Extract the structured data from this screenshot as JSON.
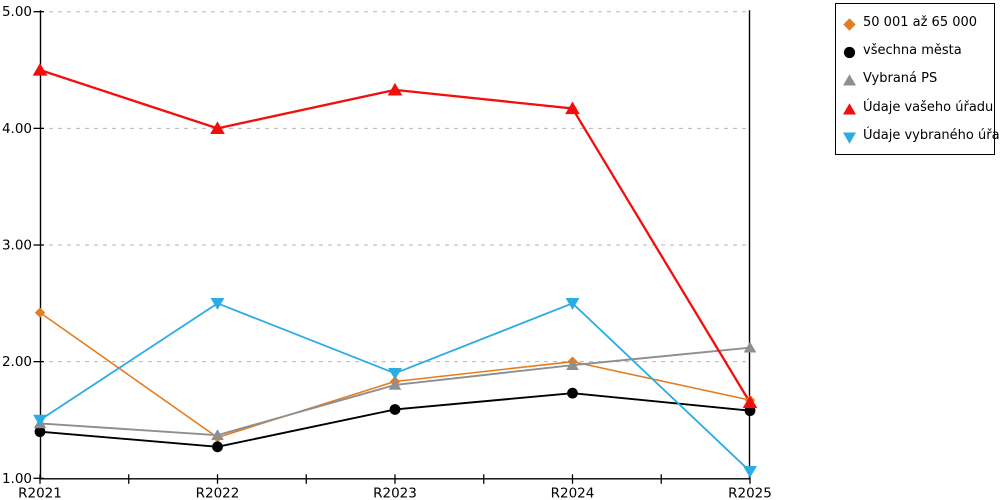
{
  "chart_data": {
    "type": "line",
    "categories": [
      "R2021",
      "R2022",
      "R2023",
      "R2024",
      "R2025"
    ],
    "series": [
      {
        "name": "50 001 až 65 000",
        "marker": "diamond",
        "color": "#E37D22",
        "values": [
          2.42,
          1.35,
          1.83,
          2.0,
          1.67
        ]
      },
      {
        "name": "všechna města",
        "marker": "circle",
        "color": "#000000",
        "values": [
          1.4,
          1.27,
          1.59,
          1.73,
          1.58
        ]
      },
      {
        "name": "Vybraná PS",
        "marker": "triangle-up",
        "color": "#8F8F8F",
        "values": [
          1.47,
          1.37,
          1.8,
          1.97,
          2.12
        ]
      },
      {
        "name": "Údaje vašeho úřadu",
        "marker": "triangle-up",
        "color": "#F30E0E",
        "values": [
          4.5,
          4.0,
          4.33,
          4.17,
          1.65
        ]
      },
      {
        "name": "Údaje vybraného úřadu",
        "marker": "triangle-down",
        "color": "#2BACE2",
        "values": [
          1.5,
          2.5,
          1.9,
          2.5,
          1.06
        ]
      }
    ],
    "title": "",
    "xlabel": "",
    "ylabel": "",
    "y_ticks": [
      "1.00",
      "2.00",
      "3.00",
      "4.00",
      "5.00"
    ],
    "ylim": [
      1,
      5
    ],
    "grid": "horizontal-dashed",
    "legend_position": "top-right",
    "axis_color": "#000000",
    "grid_color": "#B5B5B5"
  }
}
